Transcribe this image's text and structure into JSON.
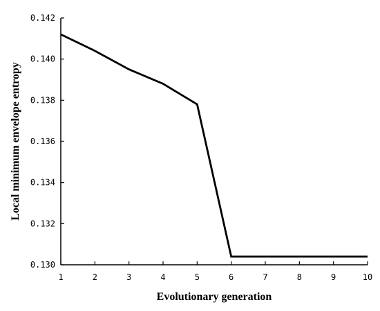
{
  "chart_data": {
    "type": "line",
    "title": "",
    "xlabel": "Evolutionary generation",
    "ylabel": "Local minimum envelope entropy",
    "x": [
      1,
      2,
      3,
      4,
      5,
      6,
      7,
      8,
      9,
      10
    ],
    "series": [
      {
        "values": [
          0.1412,
          0.1404,
          0.1395,
          0.1388,
          0.1378,
          0.1304,
          0.1304,
          0.1304,
          0.1304,
          0.1304
        ],
        "color": "#000000"
      }
    ],
    "xlim": [
      1,
      10
    ],
    "ylim": [
      0.13,
      0.142
    ],
    "xticks": [
      "1",
      "2",
      "3",
      "4",
      "5",
      "6",
      "7",
      "8",
      "9",
      "10"
    ],
    "yticks": [
      "0.130",
      "0.132",
      "0.134",
      "0.136",
      "0.138",
      "0.140",
      "0.142"
    ],
    "grid": false,
    "legend": "none"
  }
}
